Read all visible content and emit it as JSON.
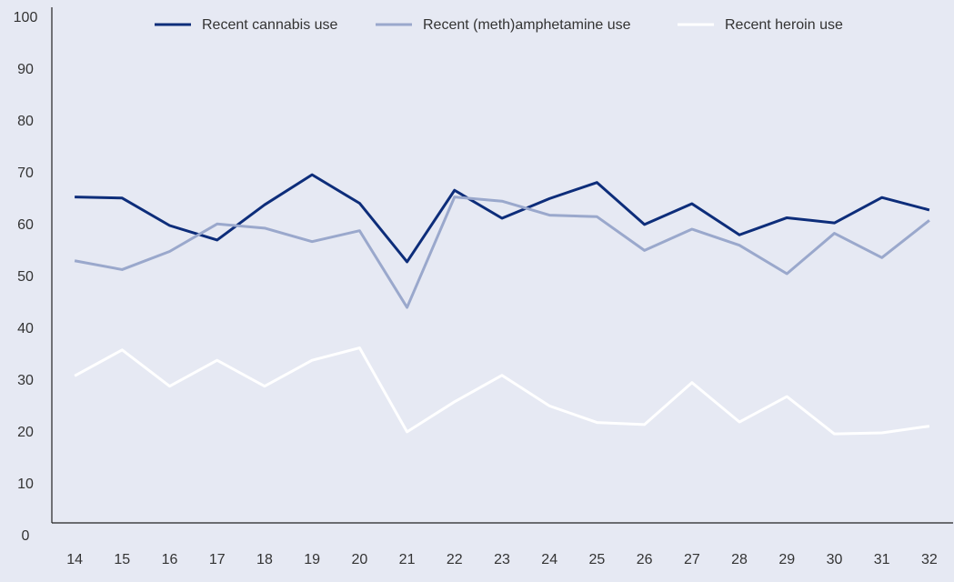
{
  "chart_data": {
    "type": "line",
    "categories": [
      "14",
      "15",
      "16",
      "17",
      "18",
      "19",
      "20",
      "21",
      "22",
      "23",
      "24",
      "25",
      "26",
      "27",
      "28",
      "29",
      "30",
      "31",
      "32"
    ],
    "series": [
      {
        "name": "Recent cannabis use",
        "color": "#0d2d7a",
        "values": [
          65.5,
          65.3,
          60,
          57.2,
          64,
          69.8,
          64.3,
          53,
          66.8,
          61.4,
          65.2,
          68.3,
          60.2,
          64.2,
          58.2,
          61.5,
          60.5,
          65.4,
          63
        ]
      },
      {
        "name": "Recent (meth)amphetamine use",
        "color": "#9aa8cc",
        "values": [
          53.2,
          51.5,
          55,
          60.3,
          59.5,
          56.9,
          59,
          44.2,
          65.5,
          64.7,
          62,
          61.7,
          55.2,
          59.3,
          56.2,
          50.7,
          58.5,
          53.8,
          61
        ]
      },
      {
        "name": "Recent heroin use",
        "color": "#ffffff",
        "values": [
          31,
          36,
          29,
          34,
          29,
          34,
          36.4,
          20.2,
          26,
          31.1,
          25.2,
          22,
          21.6,
          29.7,
          22.1,
          27,
          19.8,
          20,
          21.3
        ]
      }
    ],
    "ylim": [
      0,
      100
    ],
    "yticks": [
      0,
      10,
      20,
      30,
      40,
      50,
      60,
      70,
      80,
      90,
      100
    ],
    "grid": false,
    "legend": "top"
  }
}
